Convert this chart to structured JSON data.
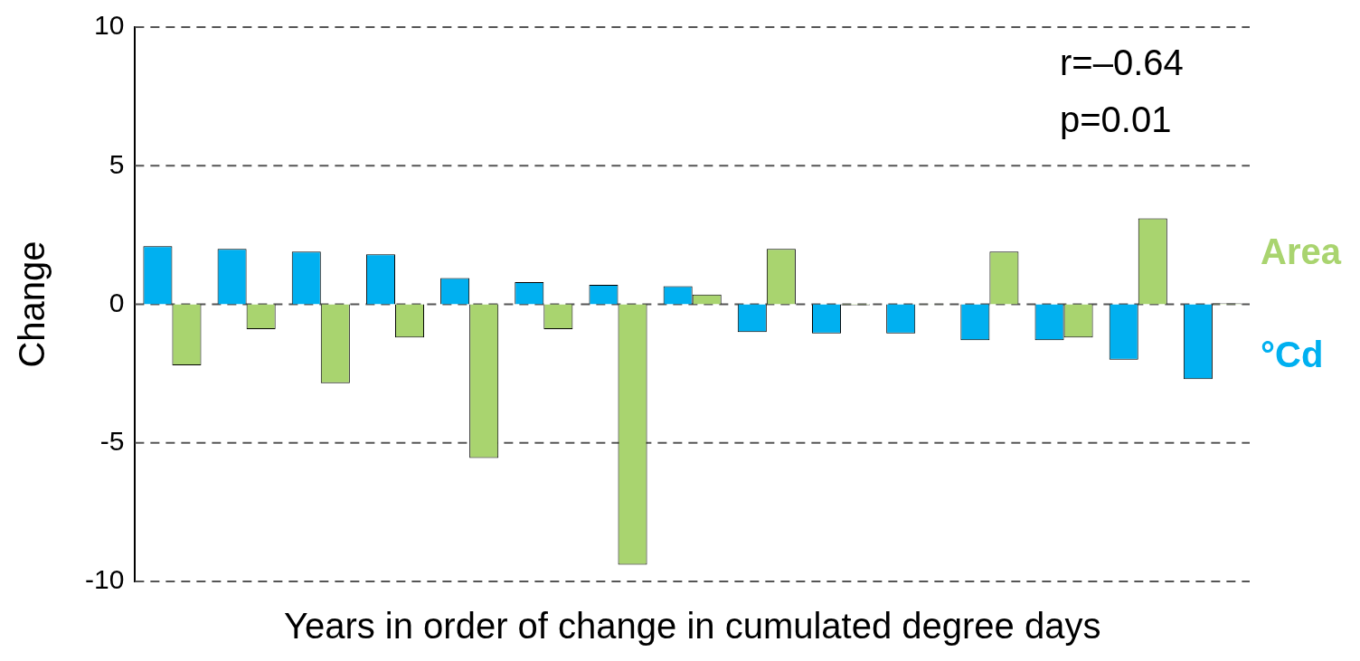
{
  "chart_data": {
    "type": "bar",
    "xlabel": "Years in order of change in cumulated degree days",
    "ylabel": "Change",
    "categories": [
      null,
      null,
      null,
      null,
      null,
      null,
      null,
      null,
      null,
      null,
      null,
      null,
      null,
      null,
      null
    ],
    "series": [
      {
        "name": "°Cd",
        "color": "#00b0f0",
        "values": [
          2.1,
          2.0,
          1.9,
          1.8,
          0.95,
          0.8,
          0.7,
          0.65,
          -1.0,
          -1.05,
          -1.05,
          -1.3,
          -1.3,
          -2.0,
          -2.7
        ]
      },
      {
        "name": "Area",
        "color": "#a9d46f",
        "values": [
          -2.2,
          -0.9,
          -2.85,
          -1.2,
          -5.55,
          -0.9,
          -9.4,
          0.35,
          2.0,
          -0.03,
          0.01,
          1.9,
          -1.2,
          3.1,
          0.03
        ]
      }
    ],
    "ylim": [
      -10,
      10
    ],
    "yticks": [
      -10,
      -5,
      0,
      5,
      10
    ],
    "grid": "y",
    "tick_labels": "y",
    "legend": "right",
    "annotations": [
      "r=–0.64",
      "p=0.01"
    ]
  }
}
